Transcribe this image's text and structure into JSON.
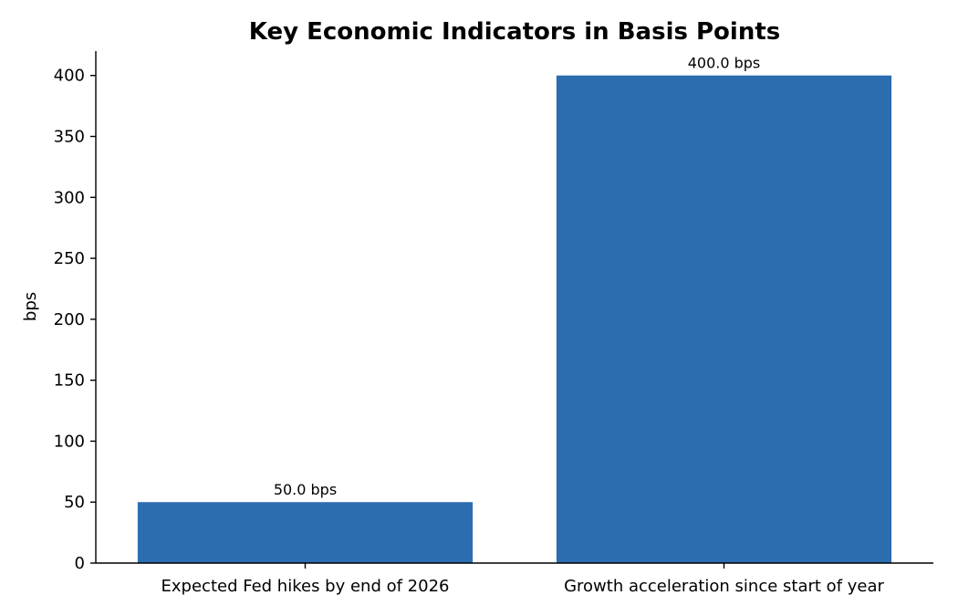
{
  "chart_data": {
    "type": "bar",
    "title": "Key Economic Indicators in Basis Points",
    "xlabel": "",
    "ylabel": "bps",
    "categories": [
      "Expected Fed hikes by end of 2026",
      "Growth acceleration since start of year"
    ],
    "values": [
      50,
      400
    ],
    "data_labels": [
      "50.0 bps",
      "400.0 bps"
    ],
    "ylim": [
      0,
      420
    ],
    "yticks": [
      0,
      50,
      100,
      150,
      200,
      250,
      300,
      350,
      400
    ],
    "grid": false,
    "legend": "none",
    "bar_color": "#2c6db0"
  }
}
